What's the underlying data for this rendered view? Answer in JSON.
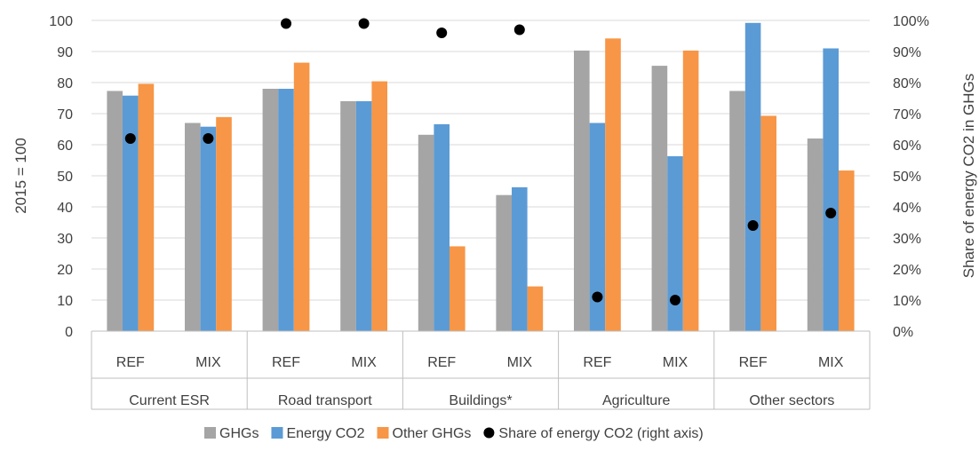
{
  "chart_data": {
    "type": "bar",
    "categories": [
      {
        "label": "REF",
        "group": "Current ESR"
      },
      {
        "label": "MIX",
        "group": "Current ESR"
      },
      {
        "label": "REF",
        "group": "Road transport"
      },
      {
        "label": "MIX",
        "group": "Road transport"
      },
      {
        "label": "REF",
        "group": "Buildings*"
      },
      {
        "label": "MIX",
        "group": "Buildings*"
      },
      {
        "label": "REF",
        "group": "Agriculture"
      },
      {
        "label": "MIX",
        "group": "Agriculture"
      },
      {
        "label": "REF",
        "group": "Other sectors"
      },
      {
        "label": "MIX",
        "group": "Other sectors"
      }
    ],
    "groups": [
      "Current ESR",
      "Road transport",
      "Buildings*",
      "Agriculture",
      "Other sectors"
    ],
    "series": [
      {
        "name": "GHGs",
        "type": "bar",
        "color": "#a5a5a5",
        "values": [
          77.3,
          67.0,
          78.0,
          74.0,
          63.2,
          43.8,
          90.3,
          85.4,
          77.3,
          62.0
        ]
      },
      {
        "name": "Energy CO2",
        "type": "bar",
        "color": "#5b9bd5",
        "values": [
          75.8,
          65.8,
          78.0,
          74.0,
          66.6,
          46.3,
          67.0,
          56.3,
          99.2,
          91.0
        ]
      },
      {
        "name": "Other GHGs",
        "type": "bar",
        "color": "#f79646",
        "values": [
          79.6,
          68.9,
          86.4,
          80.4,
          27.3,
          14.4,
          94.2,
          90.3,
          69.3,
          51.7
        ]
      },
      {
        "name": "Share of energy CO2 (right  axis)",
        "type": "scatter",
        "axis": "right",
        "color": "#000000",
        "values": [
          62,
          62,
          99,
          99,
          96,
          97,
          11,
          10,
          34,
          38
        ]
      }
    ],
    "ylabel": "2015 = 100",
    "y2label": "Share of energy CO2 in GHGs",
    "ylim": [
      0,
      100
    ],
    "y2lim": [
      0,
      100
    ],
    "yticks": [
      "0",
      "10",
      "20",
      "30",
      "40",
      "50",
      "60",
      "70",
      "80",
      "90",
      "100"
    ],
    "y2ticks": [
      "0%",
      "10%",
      "20%",
      "30%",
      "40%",
      "50%",
      "60%",
      "70%",
      "80%",
      "90%",
      "100%"
    ],
    "grid": true,
    "legend": "bottom"
  }
}
